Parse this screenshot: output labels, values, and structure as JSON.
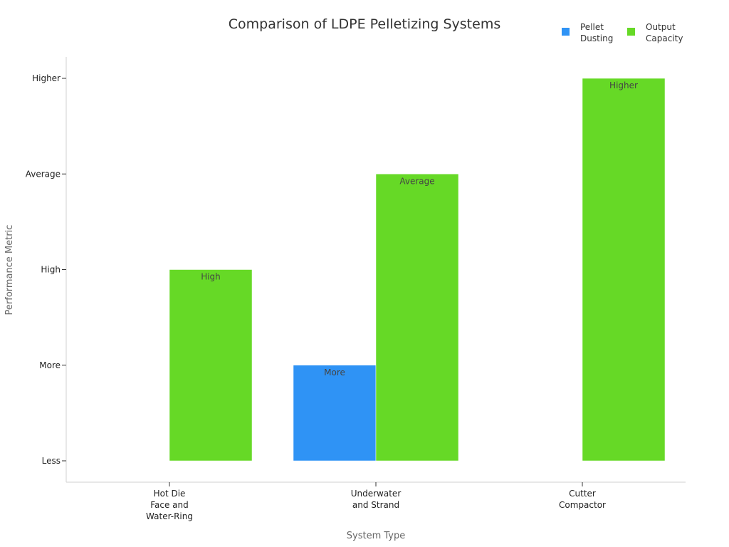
{
  "chart_data": {
    "type": "bar",
    "title": "Comparison of LDPE Pelletizing Systems",
    "xlabel": "System Type",
    "ylabel": "Performance Metric",
    "y_tick_labels": [
      "Less",
      "More",
      "High",
      "Average",
      "Higher"
    ],
    "categories": [
      [
        "Hot Die",
        "Face and",
        "Water-Ring"
      ],
      [
        "Underwater",
        "and Strand"
      ],
      [
        "Cutter",
        "Compactor"
      ]
    ],
    "series": [
      {
        "name": "Pellet Dusting",
        "color": "#2f93f5",
        "values": [
          "Less",
          "More",
          "Less"
        ]
      },
      {
        "name": "Output Capacity",
        "color": "#66d926",
        "values": [
          "High",
          "Average",
          "Higher"
        ]
      }
    ],
    "legend_labels": [
      [
        "Pellet",
        "Dusting"
      ],
      [
        "Output",
        "Capacity"
      ]
    ],
    "legend_position": "top-right",
    "grid": false
  }
}
